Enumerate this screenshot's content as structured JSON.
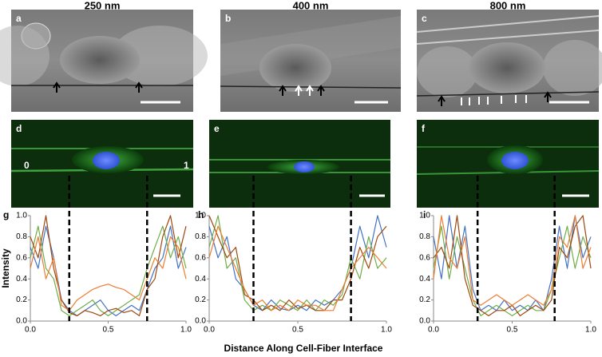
{
  "figure": {
    "titles": [
      "250 nm",
      "400 nm",
      "800 nm"
    ],
    "image_letters": [
      "a",
      "b",
      "c",
      "d",
      "e",
      "f"
    ],
    "d_labels": [
      "0",
      "1"
    ]
  },
  "chart_data": [
    {
      "type": "line",
      "panel": "g",
      "ylabel": "Intensity",
      "x": [
        0,
        0.05,
        0.1,
        0.15,
        0.2,
        0.25,
        0.3,
        0.35,
        0.4,
        0.45,
        0.5,
        0.55,
        0.6,
        0.65,
        0.7,
        0.75,
        0.8,
        0.85,
        0.9,
        0.95,
        1
      ],
      "series": [
        {
          "color": "#4472c4",
          "values": [
            0.7,
            0.5,
            0.9,
            0.6,
            0.2,
            0.1,
            0.05,
            0.1,
            0.15,
            0.2,
            0.1,
            0.05,
            0.1,
            0.15,
            0.1,
            0.3,
            0.5,
            0.6,
            0.9,
            0.5,
            0.7
          ]
        },
        {
          "color": "#70ad47",
          "values": [
            0.6,
            0.9,
            0.5,
            0.4,
            0.1,
            0.05,
            0.1,
            0.15,
            0.2,
            0.1,
            0.05,
            0.1,
            0.15,
            0.2,
            0.25,
            0.5,
            0.7,
            0.9,
            0.6,
            0.8,
            0.5
          ]
        },
        {
          "color": "#9e480e",
          "values": [
            0.8,
            0.6,
            1.0,
            0.5,
            0.2,
            0.08,
            0.05,
            0.1,
            0.08,
            0.05,
            0.1,
            0.12,
            0.08,
            0.1,
            0.05,
            0.3,
            0.4,
            0.8,
            1.0,
            0.6,
            0.9
          ]
        },
        {
          "color": "#ed7d31",
          "values": [
            0.5,
            0.8,
            0.4,
            0.6,
            0.15,
            0.1,
            0.2,
            0.25,
            0.3,
            0.33,
            0.35,
            0.32,
            0.3,
            0.25,
            0.2,
            0.4,
            0.6,
            0.5,
            0.8,
            0.7,
            0.4
          ]
        }
      ],
      "markers": [
        0.25,
        0.75
      ],
      "xlim": [
        0,
        1
      ],
      "ylim": [
        0,
        1
      ],
      "xticks": [
        {
          "value": 0,
          "label": "0.0"
        },
        {
          "value": 0.5,
          "label": "0.5"
        },
        {
          "value": 1,
          "label": "1.0"
        }
      ],
      "yticks": [
        {
          "value": 0,
          "label": "0.0"
        },
        {
          "value": 0.2,
          "label": "0.2"
        },
        {
          "value": 0.4,
          "label": "0.4"
        },
        {
          "value": 0.6,
          "label": "0.6"
        },
        {
          "value": 0.8,
          "label": "0.8"
        },
        {
          "value": 1,
          "label": "1.0"
        }
      ]
    },
    {
      "type": "line",
      "panel": "h",
      "xlabel": "Distance Along Cell-Fiber Interface",
      "x": [
        0,
        0.05,
        0.1,
        0.15,
        0.2,
        0.25,
        0.3,
        0.35,
        0.4,
        0.45,
        0.5,
        0.55,
        0.6,
        0.65,
        0.7,
        0.75,
        0.8,
        0.85,
        0.9,
        0.95,
        1
      ],
      "series": [
        {
          "color": "#4472c4",
          "values": [
            0.9,
            0.6,
            0.8,
            0.4,
            0.3,
            0.15,
            0.1,
            0.2,
            0.12,
            0.1,
            0.15,
            0.1,
            0.2,
            0.15,
            0.2,
            0.3,
            0.5,
            0.9,
            0.6,
            1.0,
            0.7
          ]
        },
        {
          "color": "#70ad47",
          "values": [
            0.7,
            1.0,
            0.5,
            0.6,
            0.2,
            0.1,
            0.15,
            0.1,
            0.2,
            0.15,
            0.1,
            0.2,
            0.1,
            0.2,
            0.15,
            0.25,
            0.6,
            0.4,
            0.8,
            0.5,
            0.6
          ]
        },
        {
          "color": "#9e480e",
          "values": [
            1.0,
            0.8,
            0.6,
            0.7,
            0.25,
            0.2,
            0.1,
            0.15,
            0.1,
            0.2,
            0.12,
            0.15,
            0.1,
            0.1,
            0.2,
            0.2,
            0.4,
            0.7,
            0.5,
            0.8,
            0.9
          ]
        },
        {
          "color": "#ed7d31",
          "values": [
            0.6,
            0.9,
            0.7,
            0.5,
            0.3,
            0.15,
            0.2,
            0.1,
            0.15,
            0.1,
            0.2,
            0.15,
            0.15,
            0.1,
            0.1,
            0.3,
            0.5,
            0.6,
            0.7,
            0.6,
            0.5
          ]
        }
      ],
      "markers": [
        0.25,
        0.8
      ],
      "xlim": [
        0,
        1
      ],
      "ylim": [
        0,
        1
      ],
      "xticks": [
        {
          "value": 0,
          "label": "0.0"
        },
        {
          "value": 0.5,
          "label": "0.5"
        },
        {
          "value": 1,
          "label": "1.0"
        }
      ],
      "yticks": [
        {
          "value": 0,
          "label": "0.0"
        },
        {
          "value": 0.2,
          "label": "0.2"
        },
        {
          "value": 0.4,
          "label": "0.4"
        },
        {
          "value": 0.6,
          "label": "0.6"
        },
        {
          "value": 0.8,
          "label": "0.8"
        },
        {
          "value": 1,
          "label": "1.0"
        }
      ]
    },
    {
      "type": "line",
      "panel": "i",
      "x": [
        0,
        0.05,
        0.1,
        0.15,
        0.2,
        0.25,
        0.3,
        0.35,
        0.4,
        0.45,
        0.5,
        0.55,
        0.6,
        0.65,
        0.7,
        0.75,
        0.8,
        0.85,
        0.9,
        0.95,
        1
      ],
      "series": [
        {
          "color": "#4472c4",
          "values": [
            0.8,
            0.4,
            1.0,
            0.5,
            0.9,
            0.3,
            0.1,
            0.15,
            0.1,
            0.2,
            0.1,
            0.15,
            0.1,
            0.2,
            0.1,
            0.4,
            0.9,
            0.5,
            1.0,
            0.6,
            0.8
          ]
        },
        {
          "color": "#70ad47",
          "values": [
            0.5,
            0.9,
            0.4,
            0.8,
            0.5,
            0.2,
            0.05,
            0.1,
            0.15,
            0.1,
            0.05,
            0.1,
            0.15,
            0.1,
            0.1,
            0.3,
            0.6,
            0.9,
            0.5,
            0.8,
            0.6
          ]
        },
        {
          "color": "#9e480e",
          "values": [
            0.6,
            0.7,
            0.5,
            1.0,
            0.4,
            0.15,
            0.1,
            0.05,
            0.1,
            0.1,
            0.15,
            0.05,
            0.1,
            0.15,
            0.1,
            0.2,
            0.7,
            0.6,
            0.9,
            1.0,
            0.5
          ]
        },
        {
          "color": "#ed7d31",
          "values": [
            0.4,
            1.0,
            0.6,
            0.5,
            0.8,
            0.2,
            0.15,
            0.2,
            0.25,
            0.2,
            0.15,
            0.2,
            0.25,
            0.2,
            0.15,
            0.3,
            0.8,
            0.7,
            1.0,
            0.5,
            0.7
          ]
        }
      ],
      "markers": [
        0.28,
        0.77
      ],
      "xlim": [
        0,
        1
      ],
      "ylim": [
        0,
        1
      ],
      "xticks": [
        {
          "value": 0,
          "label": "0.0"
        },
        {
          "value": 0.5,
          "label": "0.5"
        },
        {
          "value": 1,
          "label": "1.0"
        }
      ],
      "yticks": [
        {
          "value": 0,
          "label": "0.0"
        },
        {
          "value": 0.2,
          "label": "0.2"
        },
        {
          "value": 0.4,
          "label": "0.4"
        },
        {
          "value": 0.6,
          "label": "0.6"
        },
        {
          "value": 0.8,
          "label": "0.8"
        },
        {
          "value": 1,
          "label": "1.0"
        }
      ]
    }
  ]
}
